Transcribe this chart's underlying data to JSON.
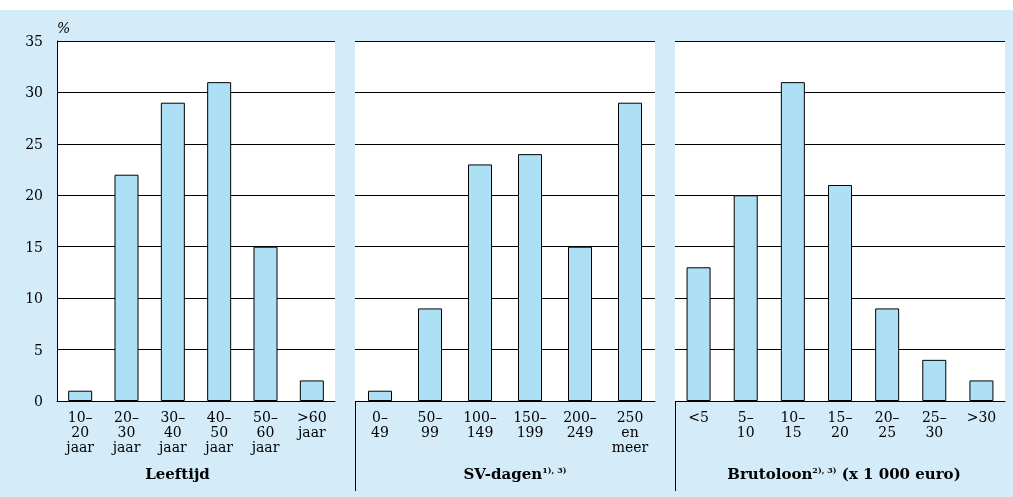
{
  "chart_data": [
    {
      "type": "bar",
      "ylabel": "%",
      "xlabel": "Leeftijd",
      "categories": [
        "10–\n20\njaar",
        "20–\n30\njaar",
        "30–\n40\njaar",
        "40–\n50\njaar",
        "50–\n60\njaar",
        ">60\njaar"
      ],
      "values": [
        1,
        22,
        29,
        31,
        15,
        2
      ],
      "color": "#aee0f5",
      "ylim": [
        0,
        35
      ],
      "yticks": [
        0,
        5,
        10,
        15,
        20,
        25,
        30,
        35
      ],
      "grid": "y"
    },
    {
      "type": "bar",
      "xlabel": "SV-dagen$^{1), 3)}$",
      "categories": [
        "0–\n49",
        "50–\n99",
        "100–\n149",
        "150–\n199",
        "200–\n249",
        "250\nen\nmeer"
      ],
      "values": [
        1,
        9,
        23,
        24,
        15,
        29
      ],
      "color": "#aee0f5",
      "ylim": [
        0,
        35
      ],
      "yticks": [
        0,
        5,
        10,
        15,
        20,
        25,
        30,
        35
      ],
      "grid": "y",
      "tick_labels": "x"
    },
    {
      "type": "bar",
      "xlabel": "Brutoloon$^{2), 3)}$ (x 1 000 euro)",
      "categories": [
        "<5",
        "5–\n10",
        "10–\n15",
        "15–\n20",
        "20–\n25",
        "25–\n30",
        ">30"
      ],
      "values": [
        13,
        20,
        31,
        21,
        9,
        4,
        2
      ],
      "color": "#aee0f5",
      "ylim": [
        0,
        35
      ],
      "yticks": [
        0,
        5,
        10,
        15,
        20,
        25,
        30,
        35
      ],
      "grid": "y",
      "tick_labels": "x"
    }
  ]
}
